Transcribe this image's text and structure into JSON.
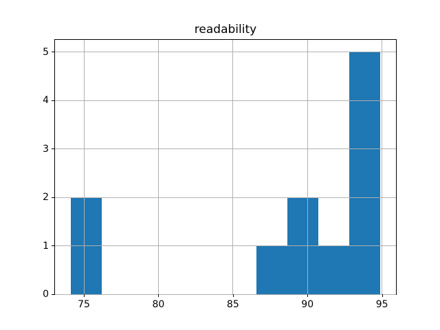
{
  "chart_data": {
    "type": "bar",
    "subtype": "histogram",
    "title": "readability",
    "xlabel": "",
    "ylabel": "",
    "bin_edges": [
      74.1,
      76.18,
      78.26,
      80.34,
      82.42,
      84.5,
      86.58,
      88.66,
      90.74,
      92.82,
      94.9
    ],
    "counts": [
      2,
      0,
      0,
      0,
      0,
      0,
      1,
      2,
      1,
      5
    ],
    "xticks": [
      75,
      80,
      85,
      90,
      95
    ],
    "yticks": [
      0,
      1,
      2,
      3,
      4,
      5
    ],
    "xlim": [
      73.06,
      95.94
    ],
    "ylim": [
      0,
      5.25
    ],
    "grid": true,
    "legend": false,
    "colors": {
      "bar_fill": "#1f77b4",
      "grid": "#b0b0b0",
      "spine": "#000000",
      "text": "#000000",
      "background": "#ffffff"
    }
  }
}
